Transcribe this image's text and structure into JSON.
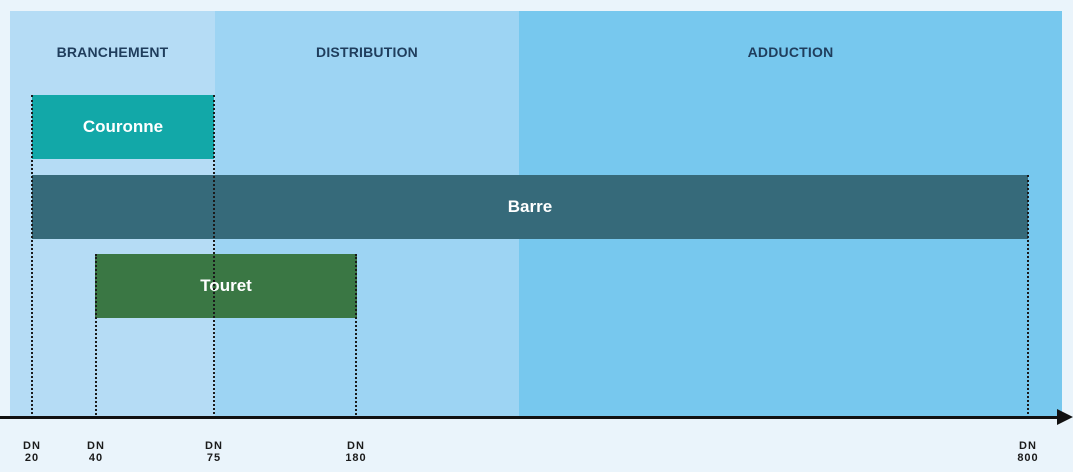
{
  "zones": [
    {
      "label": "BRANCHEMENT"
    },
    {
      "label": "DISTRIBUTION"
    },
    {
      "label": "ADDUCTION"
    }
  ],
  "bars": [
    {
      "label": "Couronne",
      "from": "DN 20",
      "to": "DN 75",
      "color": "#12a8a8"
    },
    {
      "label": "Barre",
      "from": "DN 20",
      "to": "DN 800",
      "color": "#366a7a"
    },
    {
      "label": "Touret",
      "from": "DN 40",
      "to": "DN 180",
      "color": "#3a7744"
    }
  ],
  "axis": {
    "ticks": [
      {
        "line1": "DN",
        "line2": "20"
      },
      {
        "line1": "DN",
        "line2": "40"
      },
      {
        "line1": "DN",
        "line2": "75"
      },
      {
        "line1": "DN",
        "line2": "180"
      },
      {
        "line1": "DN",
        "line2": "800"
      }
    ]
  },
  "colors": {
    "background": "#eaf4fb",
    "zone_branchement": "#b5dcf5",
    "zone_distribution": "#9dd4f3",
    "zone_adduction": "#77c8ee",
    "zone_label": "#1f3d5c"
  }
}
